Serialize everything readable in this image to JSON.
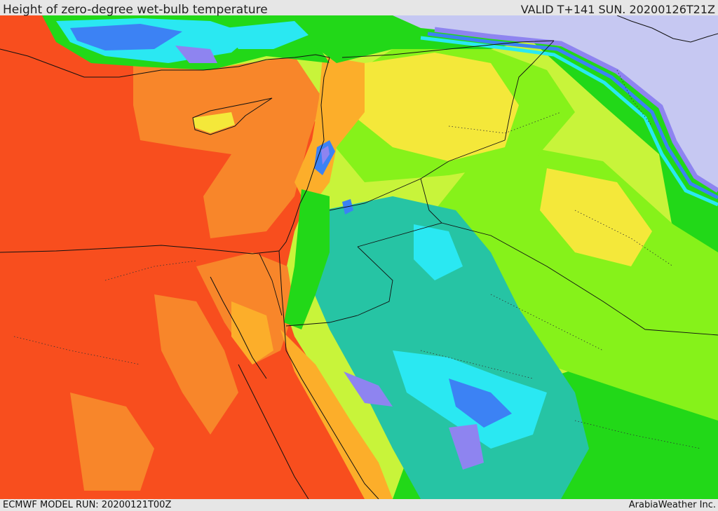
{
  "header": {
    "title": "Height of zero-degree wet-bulb temperature",
    "valid": "VALID T+141 SUN. 20200126T21Z"
  },
  "footer": {
    "model_run": "ECMWF MODEL RUN: 20200121T00Z",
    "credit": "ArabiaWeather Inc."
  },
  "colors": {
    "red_orange": "#f84e1e",
    "orange": "#f8862a",
    "amber": "#fcae2a",
    "yellow": "#f4e83a",
    "yellow_green": "#c8f43a",
    "lime": "#86f21a",
    "green": "#22d818",
    "teal": "#26c4a4",
    "cyan": "#2ae8f2",
    "blue": "#3c82f4",
    "violet": "#8e84f0",
    "lavender": "#c6c8f2"
  }
}
